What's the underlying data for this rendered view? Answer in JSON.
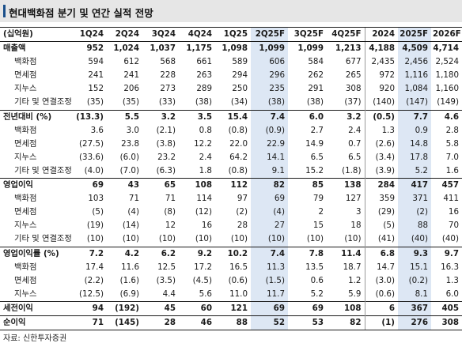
{
  "title": "현대백화점 분기 및 연간 실적 전망",
  "source": "자료: 신한투자증권",
  "columns": [
    "(십억원)",
    "1Q24",
    "2Q24",
    "3Q24",
    "4Q24",
    "1Q25",
    "2Q25F",
    "3Q25F",
    "4Q25F",
    "2024",
    "2025F",
    "2026F"
  ],
  "highlight_columns": [
    "2Q25F",
    "2025F"
  ],
  "rows": [
    {
      "label": "매출액",
      "type": "main",
      "values": [
        "952",
        "1,024",
        "1,037",
        "1,175",
        "1,098",
        "1,099",
        "1,099",
        "1,213",
        "4,188",
        "4,509",
        "4,714"
      ]
    },
    {
      "label": "백화점",
      "type": "sub",
      "values": [
        "594",
        "612",
        "568",
        "661",
        "589",
        "606",
        "584",
        "677",
        "2,435",
        "2,456",
        "2,524"
      ]
    },
    {
      "label": "면세점",
      "type": "sub",
      "values": [
        "241",
        "241",
        "228",
        "263",
        "294",
        "296",
        "262",
        "265",
        "972",
        "1,116",
        "1,180"
      ]
    },
    {
      "label": "지누스",
      "type": "sub",
      "values": [
        "152",
        "206",
        "273",
        "289",
        "250",
        "235",
        "291",
        "308",
        "920",
        "1,084",
        "1,160"
      ]
    },
    {
      "label": "기타 및 연결조정",
      "type": "sub",
      "values": [
        "(35)",
        "(35)",
        "(33)",
        "(38)",
        "(34)",
        "(38)",
        "(38)",
        "(37)",
        "(140)",
        "(147)",
        "(149)"
      ]
    },
    {
      "label": "전년대비 (%)",
      "type": "main",
      "values": [
        "(13.3)",
        "5.5",
        "3.2",
        "3.5",
        "15.4",
        "7.4",
        "6.0",
        "3.2",
        "(0.5)",
        "7.7",
        "4.6"
      ]
    },
    {
      "label": "백화점",
      "type": "sub",
      "values": [
        "3.6",
        "3.0",
        "(2.1)",
        "0.8",
        "(0.8)",
        "(0.9)",
        "2.7",
        "2.4",
        "1.3",
        "0.9",
        "2.8"
      ]
    },
    {
      "label": "면세점",
      "type": "sub",
      "values": [
        "(27.5)",
        "23.8",
        "(3.8)",
        "12.2",
        "22.0",
        "22.9",
        "14.9",
        "0.7",
        "(2.6)",
        "14.8",
        "5.8"
      ]
    },
    {
      "label": "지누스",
      "type": "sub",
      "values": [
        "(33.6)",
        "(6.0)",
        "23.2",
        "2.4",
        "64.2",
        "14.1",
        "6.5",
        "6.5",
        "(3.4)",
        "17.8",
        "7.0"
      ]
    },
    {
      "label": "기타 및 연결조정",
      "type": "sub",
      "values": [
        "(4.0)",
        "(7.0)",
        "(6.3)",
        "1.8",
        "(0.8)",
        "9.1",
        "15.2",
        "(1.8)",
        "(3.9)",
        "5.2",
        "1.6"
      ]
    },
    {
      "label": "영업이익",
      "type": "main",
      "values": [
        "69",
        "43",
        "65",
        "108",
        "112",
        "82",
        "85",
        "138",
        "284",
        "417",
        "457"
      ]
    },
    {
      "label": "백화점",
      "type": "sub",
      "values": [
        "103",
        "71",
        "71",
        "114",
        "97",
        "69",
        "79",
        "127",
        "359",
        "371",
        "411"
      ]
    },
    {
      "label": "면세점",
      "type": "sub",
      "values": [
        "(5)",
        "(4)",
        "(8)",
        "(12)",
        "(2)",
        "(4)",
        "2",
        "3",
        "(29)",
        "(2)",
        "16"
      ]
    },
    {
      "label": "지누스",
      "type": "sub",
      "values": [
        "(19)",
        "(14)",
        "12",
        "16",
        "28",
        "27",
        "15",
        "18",
        "(5)",
        "88",
        "70"
      ]
    },
    {
      "label": "기타 및 연결조정",
      "type": "sub",
      "values": [
        "(10)",
        "(10)",
        "(10)",
        "(10)",
        "(10)",
        "(10)",
        "(10)",
        "(10)",
        "(41)",
        "(40)",
        "(40)"
      ]
    },
    {
      "label": "영업이익률 (%)",
      "type": "main",
      "values": [
        "7.2",
        "4.2",
        "6.2",
        "9.2",
        "10.2",
        "7.4",
        "7.8",
        "11.4",
        "6.8",
        "9.3",
        "9.7"
      ]
    },
    {
      "label": "백화점",
      "type": "sub",
      "values": [
        "17.4",
        "11.6",
        "12.5",
        "17.2",
        "16.5",
        "11.3",
        "13.5",
        "18.7",
        "14.7",
        "15.1",
        "16.3"
      ]
    },
    {
      "label": "면세점",
      "type": "sub",
      "values": [
        "(2.2)",
        "(1.6)",
        "(3.5)",
        "(4.5)",
        "(0.6)",
        "(1.5)",
        "0.6",
        "1.2",
        "(3.0)",
        "(0.2)",
        "1.3"
      ]
    },
    {
      "label": "지누스",
      "type": "sub",
      "values": [
        "(12.5)",
        "(6.9)",
        "4.4",
        "5.6",
        "11.0",
        "11.7",
        "5.2",
        "5.9",
        "(0.6)",
        "8.1",
        "6.0"
      ]
    },
    {
      "label": "세전이익",
      "type": "main",
      "values": [
        "94",
        "(192)",
        "45",
        "60",
        "121",
        "69",
        "69",
        "108",
        "6",
        "367",
        "405"
      ]
    },
    {
      "label": "순이익",
      "type": "main",
      "values": [
        "71",
        "(145)",
        "28",
        "46",
        "88",
        "52",
        "53",
        "82",
        "(1)",
        "276",
        "308"
      ]
    }
  ]
}
